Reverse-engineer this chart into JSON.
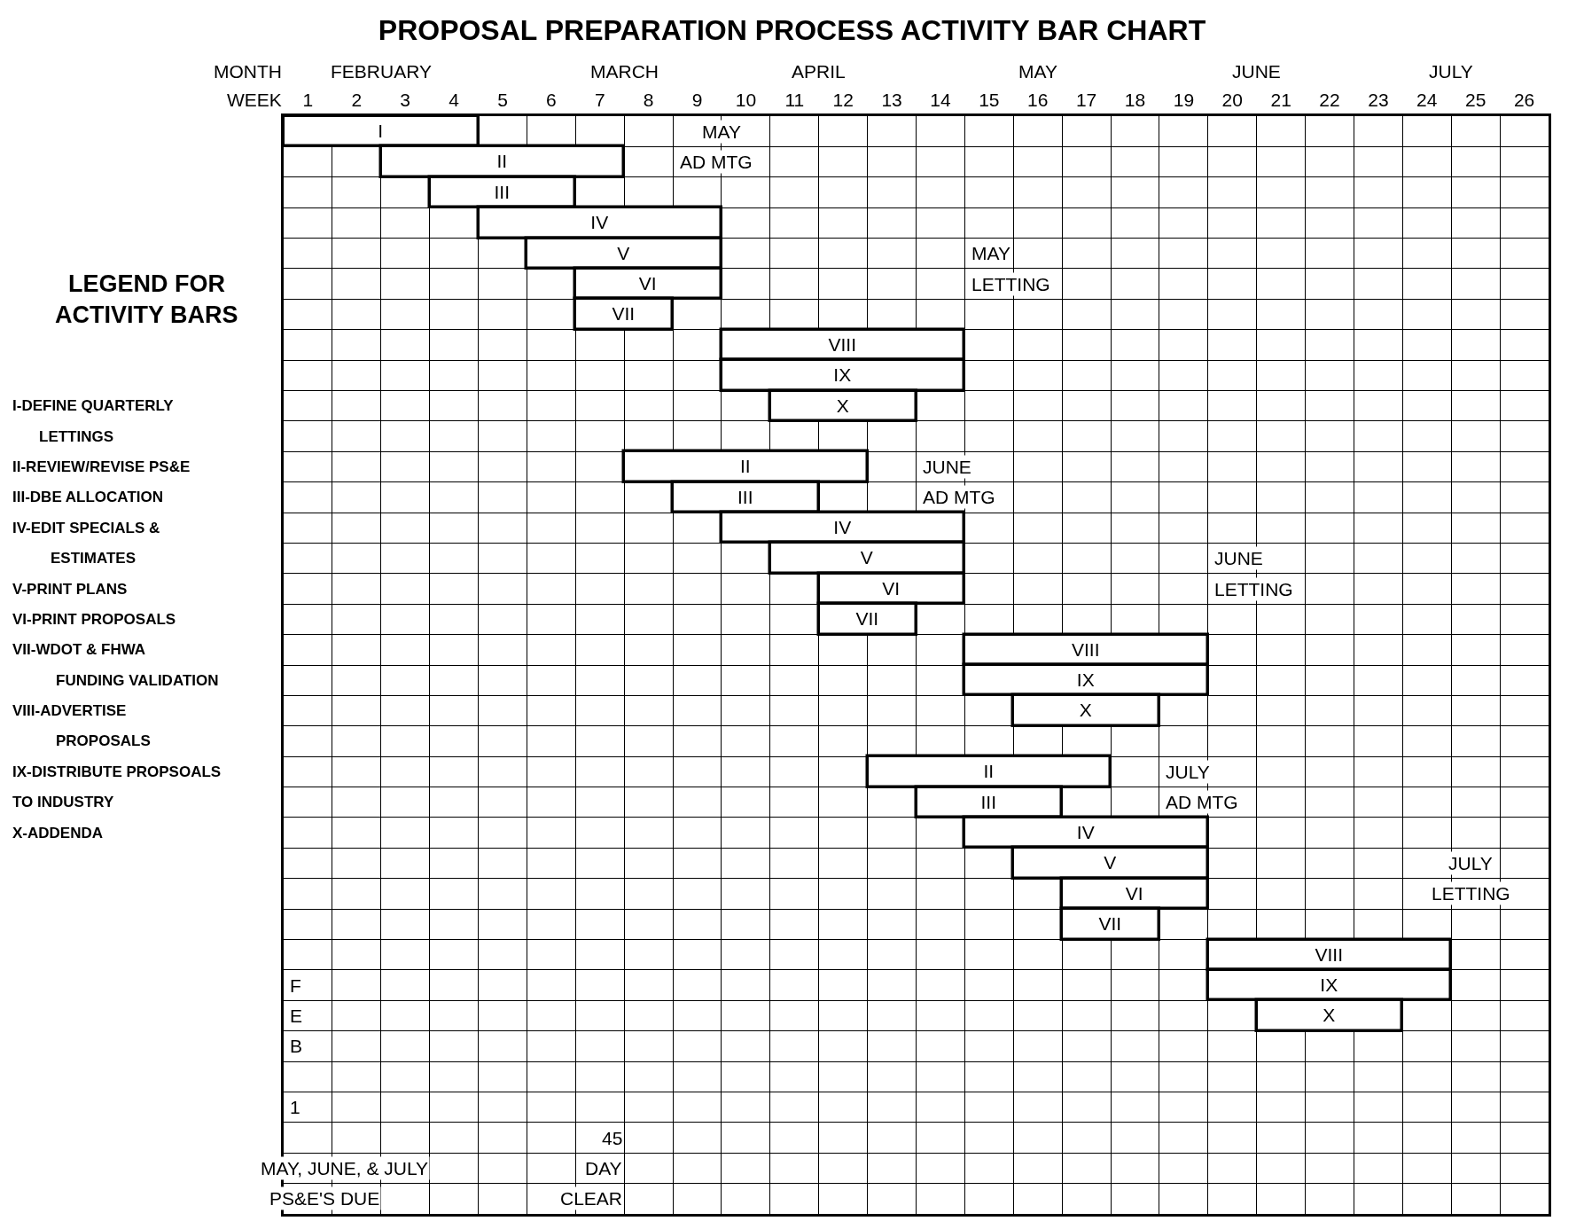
{
  "chart_data": {
    "type": "bar",
    "orientation": "horizontal",
    "title": "PROPOSAL PREPARATION PROCESS ACTIVITY BAR CHART",
    "xlabel": "WEEK",
    "categories": [
      null,
      null,
      null,
      null,
      null,
      null,
      null,
      null,
      null,
      null,
      null,
      null,
      null,
      null,
      null,
      null,
      null,
      null,
      null,
      null,
      null,
      null,
      null,
      null,
      null,
      null,
      null,
      null,
      null,
      null,
      null,
      null,
      null,
      null,
      null,
      null
    ],
    "base": [
      0,
      2,
      3,
      4,
      5,
      6,
      6,
      9,
      9,
      10,
      null,
      7,
      8,
      9,
      10,
      11,
      11,
      14,
      14,
      15,
      null,
      12,
      13,
      14,
      15,
      16,
      16,
      19,
      19,
      20,
      null,
      null,
      null,
      null,
      null,
      null
    ],
    "values": [
      4,
      5,
      3,
      5,
      4,
      3,
      2,
      5,
      5,
      3,
      null,
      5,
      3,
      5,
      4,
      3,
      2,
      5,
      5,
      3,
      null,
      5,
      3,
      5,
      4,
      3,
      2,
      5,
      5,
      3,
      null,
      null,
      null,
      null,
      null,
      null
    ],
    "value_labels": [
      "I",
      "II",
      "III",
      "IV",
      "V",
      "VI",
      "VII",
      "VIII",
      "IX",
      "X",
      null,
      "II",
      "III",
      "IV",
      "V",
      "VI",
      "VII",
      "VIII",
      "IX",
      "X",
      null,
      "II",
      "III",
      "IV",
      "V",
      "VI",
      "VII",
      "VIII",
      "IX",
      "X",
      null,
      null,
      null,
      null,
      null,
      null
    ],
    "color": "#ffffff",
    "xlim": [
      0,
      26
    ],
    "xticks": [
      {
        "value": 0.5,
        "label": "1"
      },
      {
        "value": 1.5,
        "label": "2"
      },
      {
        "value": 2.5,
        "label": "3"
      },
      {
        "value": 3.5,
        "label": "4"
      },
      {
        "value": 4.5,
        "label": "5"
      },
      {
        "value": 5.5,
        "label": "6"
      },
      {
        "value": 6.5,
        "label": "7"
      },
      {
        "value": 7.5,
        "label": "8"
      },
      {
        "value": 8.5,
        "label": "9"
      },
      {
        "value": 9.5,
        "label": "10"
      },
      {
        "value": 10.5,
        "label": "11"
      },
      {
        "value": 11.5,
        "label": "12"
      },
      {
        "value": 12.5,
        "label": "13"
      },
      {
        "value": 13.5,
        "label": "14"
      },
      {
        "value": 14.5,
        "label": "15"
      },
      {
        "value": 15.5,
        "label": "16"
      },
      {
        "value": 16.5,
        "label": "17"
      },
      {
        "value": 17.5,
        "label": "18"
      },
      {
        "value": 18.5,
        "label": "19"
      },
      {
        "value": 19.5,
        "label": "20"
      },
      {
        "value": 20.5,
        "label": "21"
      },
      {
        "value": 21.5,
        "label": "22"
      },
      {
        "value": 22.5,
        "label": "23"
      },
      {
        "value": 23.5,
        "label": "24"
      },
      {
        "value": 24.5,
        "label": "25"
      },
      {
        "value": 25.5,
        "label": "26"
      }
    ],
    "grid": true,
    "annotations": [
      "MAY",
      "AD MTG",
      "MAY",
      "LETTING",
      "JUNE",
      "AD MTG",
      "JUNE",
      "LETTING",
      "JULY",
      "AD MTG",
      "JULY",
      "LETTING",
      "F",
      "E",
      "B",
      "1",
      "45",
      "DAY",
      "CLEAR",
      "MAY, JUNE, & JULY",
      "PS&E'S DUE",
      "LEGEND FOR",
      "ACTIVITY BARS",
      "I-DEFINE QUARTERLY",
      "LETTINGS",
      "II-REVIEW/REVISE PS&E",
      "III-DBE ALLOCATION",
      "IV-EDIT SPECIALS &",
      "ESTIMATES",
      "V-PRINT PLANS",
      "VI-PRINT PROPOSALS",
      "VII-WDOT & FHWA",
      "FUNDING VALIDATION",
      "VIII-ADVERTISE",
      "PROPOSALS",
      "IX-DISTRIBUTE PROPSOALS",
      "TO INDUSTRY",
      "X-ADDENDA",
      "MONTH",
      "FEBRUARY",
      "MARCH",
      "APRIL",
      "MAY",
      "JUNE",
      "JULY"
    ]
  }
}
